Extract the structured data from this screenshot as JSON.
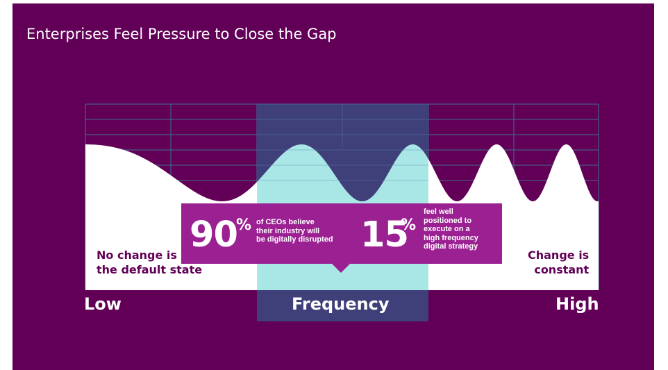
{
  "title": "Enterprises Feel Pressure to Close the Gap",
  "labels": {
    "left_state": "No change is\nthe default state",
    "right_state": "Change is\nconstant",
    "axis_low": "Low",
    "axis_mid": "Frequency",
    "axis_high": "High"
  },
  "stats": [
    {
      "value": "90",
      "unit": "%",
      "text": "of CEOs believe\ntheir industry will\nbe digitally disrupted"
    },
    {
      "value": "15",
      "unit": "%",
      "text": "feel well\npositioned to\nexecute on a\nhigh frequency\ndigital strategy"
    }
  ],
  "colors": {
    "background": "#620057",
    "wave_fill": "#ffffff",
    "highlight_band": "#3f3f7a",
    "highlight_wave": "#a9e6e6",
    "callout": "#9b2192",
    "grid": "#3f6f8f"
  }
}
